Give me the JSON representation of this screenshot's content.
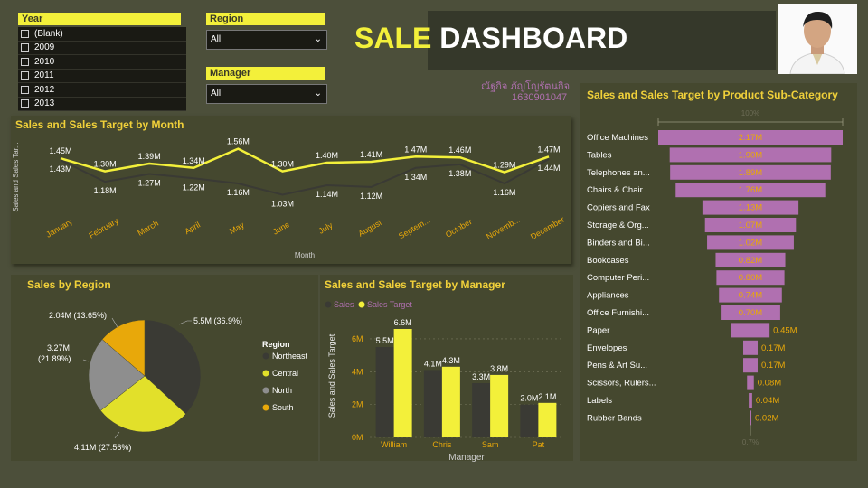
{
  "slicers": {
    "year": {
      "title": "Year",
      "options": [
        "(Blank)",
        "2009",
        "2010",
        "2011",
        "2012",
        "2013"
      ]
    },
    "region": {
      "title": "Region",
      "value": "All"
    },
    "manager": {
      "title": "Manager",
      "value": "All"
    }
  },
  "header": {
    "title_part1": "SALE",
    "title_part2": "DASHBOARD",
    "author_name": "ณัฐกิจ ภัญโญรัตนกิจ",
    "author_id": "1630901047"
  },
  "colors": {
    "sales": "#3a3a34",
    "target": "#f3f03a",
    "accent_title": "#f0d03a",
    "funnel": "#b070b0",
    "region_north": "#8e8e8e",
    "region_south": "#e8a80a",
    "region_central": "#e2e02a",
    "region_northeast": "#3a3a34"
  },
  "chart_data": [
    {
      "id": "month",
      "type": "line",
      "title": "Sales and Sales Target by Month",
      "xlabel": "Month",
      "ylabel": "Sales and Sales Tar...",
      "categories": [
        "January",
        "February",
        "March",
        "April",
        "May",
        "June",
        "July",
        "August",
        "Septem...",
        "October",
        "Novemb...",
        "December"
      ],
      "series": [
        {
          "name": "Sales Target",
          "values": [
            1.45,
            1.3,
            1.39,
            1.34,
            1.56,
            1.3,
            1.4,
            1.41,
            1.47,
            1.46,
            1.29,
            1.47
          ],
          "labels": [
            "1.45M",
            "1.30M",
            "1.39M",
            "1.34M",
            "1.56M",
            "1.30M",
            "1.40M",
            "1.41M",
            "1.47M",
            "1.46M",
            "1.29M",
            "1.47M"
          ]
        },
        {
          "name": "Sales",
          "values": [
            1.43,
            1.18,
            1.27,
            1.22,
            1.16,
            1.03,
            1.14,
            1.12,
            1.34,
            1.38,
            1.16,
            1.44
          ],
          "labels": [
            "1.43M",
            "1.18M",
            "1.27M",
            "1.22M",
            "1.16M",
            "1.03M",
            "1.14M",
            "1.12M",
            "1.34M",
            "1.38M",
            "1.16M",
            "1.44M"
          ]
        }
      ],
      "ylim": [
        0.9,
        1.65
      ]
    },
    {
      "id": "region",
      "type": "pie",
      "title": "Sales by Region",
      "legend_title": "Region",
      "slices": [
        {
          "name": "Northeast",
          "value": 5.5,
          "label": "5.5M (36.9%)"
        },
        {
          "name": "Central",
          "value": 4.11,
          "label": "4.11M (27.56%)"
        },
        {
          "name": "North",
          "value": 3.27,
          "label_line1": "3.27M",
          "label_line2": "(21.89%)"
        },
        {
          "name": "South",
          "value": 2.04,
          "label": "2.04M (13.65%)"
        }
      ]
    },
    {
      "id": "manager",
      "type": "bar",
      "title": "Sales and Sales Target by Manager",
      "xlabel": "Manager",
      "ylabel": "Sales and Sales Target",
      "legend": [
        "Sales",
        "Sales Target"
      ],
      "categories": [
        "William",
        "Chris",
        "Sam",
        "Pat"
      ],
      "series": [
        {
          "name": "Sales",
          "values": [
            5.5,
            4.1,
            3.3,
            2.0
          ],
          "labels": [
            "5.5M",
            "4.1M",
            "3.3M",
            "2.0M"
          ]
        },
        {
          "name": "Sales Target",
          "values": [
            6.6,
            4.3,
            3.8,
            2.1
          ],
          "labels": [
            "6.6M",
            "4.3M",
            "3.8M",
            "2.1M"
          ]
        }
      ],
      "yticks": [
        "0M",
        "2M",
        "4M",
        "6M"
      ],
      "ylim": [
        0,
        6.6
      ]
    },
    {
      "id": "subcategory",
      "type": "funnel",
      "title": "Sales and Sales Target by Product Sub-Category",
      "top_label": "100%",
      "bottom_label": "0.7%",
      "categories": [
        "Office Machines",
        "Tables",
        "Telephones an...",
        "Chairs & Chair...",
        "Copiers and Fax",
        "Storage & Org...",
        "Binders and Bi...",
        "Bookcases",
        "Computer Peri...",
        "Appliances",
        "Office Furnishi...",
        "Paper",
        "Envelopes",
        "Pens & Art Su...",
        "Scissors, Rulers...",
        "Labels",
        "Rubber Bands"
      ],
      "values": [
        2.17,
        1.9,
        1.89,
        1.76,
        1.13,
        1.07,
        1.02,
        0.82,
        0.8,
        0.74,
        0.7,
        0.45,
        0.17,
        0.17,
        0.08,
        0.04,
        0.02
      ],
      "labels": [
        "2.17M",
        "1.90M",
        "1.89M",
        "1.76M",
        "1.13M",
        "1.07M",
        "1.02M",
        "0.82M",
        "0.80M",
        "0.74M",
        "0.70M",
        "0.45M",
        "0.17M",
        "0.17M",
        "0.08M",
        "0.04M",
        "0.02M"
      ]
    }
  ]
}
